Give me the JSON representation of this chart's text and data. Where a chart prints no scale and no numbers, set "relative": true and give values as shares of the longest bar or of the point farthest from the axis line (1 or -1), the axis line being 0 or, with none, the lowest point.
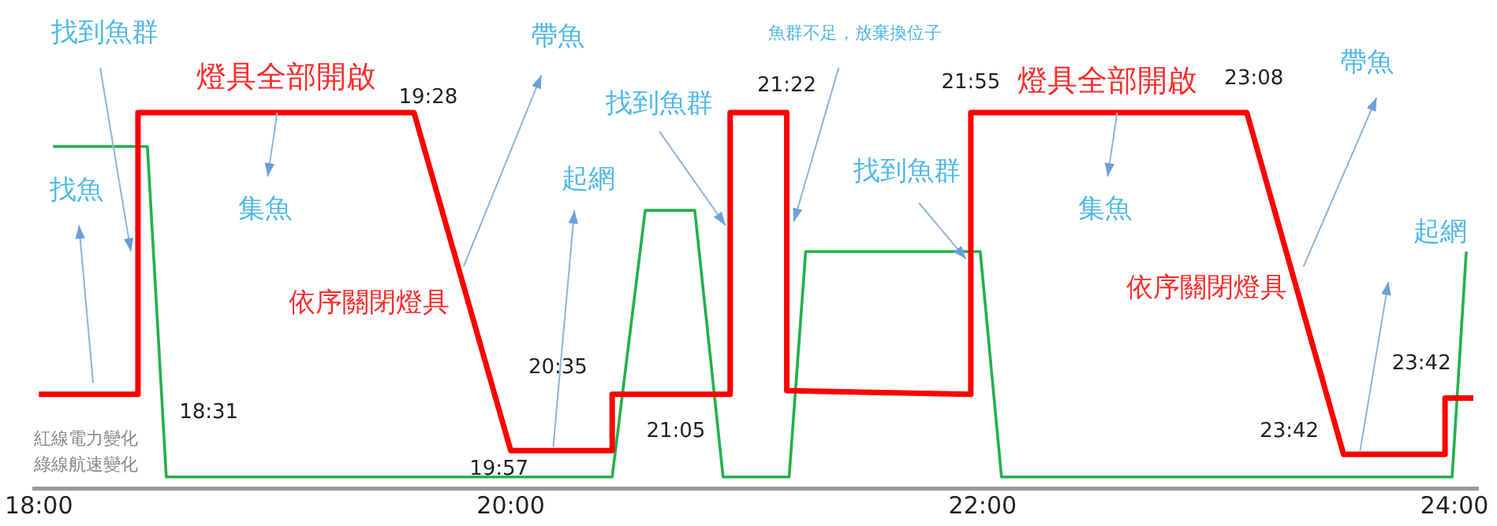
{
  "chart_data": {
    "type": "line",
    "relative": true,
    "legend": false,
    "grid": false,
    "marker": "none",
    "line_style": "solid",
    "xlim": [
      17.98,
      24.1
    ],
    "xticks": [
      {
        "value": 18,
        "label": "18:00"
      },
      {
        "value": 20,
        "label": "20:00"
      },
      {
        "value": 22,
        "label": "22:00"
      },
      {
        "value": 24,
        "label": "24:00"
      }
    ],
    "series": [
      {
        "color": "#ff0000",
        "x": [
          18.0,
          18.42,
          18.42,
          19.59,
          20.0,
          20.43,
          20.43,
          20.93,
          20.93,
          21.17,
          21.17,
          21.95,
          21.95,
          23.12,
          23.53,
          23.96,
          23.96,
          24.08
        ],
        "values": [
          0.25,
          0.25,
          1,
          1,
          0.1,
          0.1,
          0.25,
          0.25,
          1,
          1,
          0.26,
          0.25,
          1,
          1,
          0.09,
          0.09,
          0.24,
          0.24
        ]
      },
      {
        "color": "#22b14c",
        "x": [
          18.06,
          18.46,
          18.54,
          20.43,
          20.57,
          20.78,
          20.9,
          21.18,
          21.25,
          21.99,
          22.08,
          23.99,
          24.05
        ],
        "values": [
          0.91,
          0.91,
          0.03,
          0.03,
          0.74,
          0.74,
          0.03,
          0.03,
          0.63,
          0.63,
          0.03,
          0.03,
          0.63
        ]
      }
    ],
    "annotations": [
      "找到魚群",
      "找魚",
      "燈具全部開啟",
      "19:28",
      "集魚",
      "帶魚",
      "依序關閉燈具",
      "起網",
      "找到魚群",
      "20:35",
      "19:57",
      "18:31",
      "21:05",
      "21:22",
      "魚群不足，放棄換位子",
      "找到魚群",
      "21:55",
      "燈具全部開啟",
      "23:08",
      "集魚",
      "帶魚",
      "起網",
      "依序關閉燈具",
      "23:42",
      "23:42",
      "紅線電力變化",
      "綠線航速變化"
    ]
  }
}
